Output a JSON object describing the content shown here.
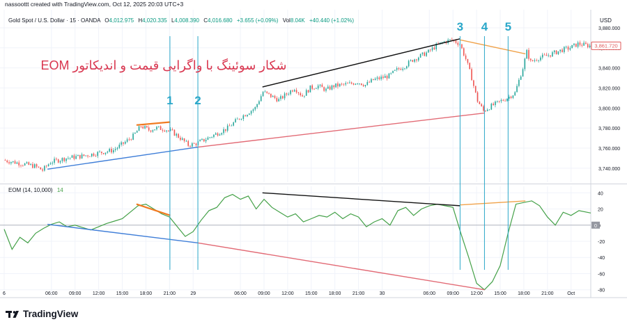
{
  "header": {
    "created_by": "nassoottt created with TradingView.com, Oct 12, 2025 20:03 UTC+3",
    "symbol_line": "Gold Spot / U.S. Dollar · 15 · OANDA",
    "ohlc": {
      "o_label": "O",
      "o_value": "4,012.975",
      "h_label": "H",
      "h_value": "4,020.335",
      "l_label": "L",
      "l_value": "4,008.390",
      "c_label": "C",
      "c_value": "4,016.680",
      "change": "+3.655 (+0.09%)",
      "vol_label": "Vol",
      "vol_value": "8.04K",
      "vol_change": "+40.440 (+1.02%)"
    }
  },
  "annotation_title": "شکار سوئینگ با واگرایی قیمت و اندیکاتور EOM",
  "indicator": {
    "label": "EOM (14, 10,000)",
    "value": "14"
  },
  "price_axis": {
    "currency": "USD",
    "last_price": "3,861.720"
  },
  "markers": [
    {
      "label": "1",
      "time": 21.05
    },
    {
      "label": "2",
      "time": 24.6
    },
    {
      "label": "3",
      "time": 57.9
    },
    {
      "label": "4",
      "time": 61.0
    },
    {
      "label": "5",
      "time": 64.0
    }
  ],
  "footer": {
    "brand": "TradingView"
  },
  "colors": {
    "up": "#26a69a",
    "down": "#ef5350",
    "eom": "#43a047",
    "marker": "#2aa7c9",
    "title": "#d9364f",
    "blue": "#3f7ed8",
    "red": "#e26a75",
    "black": "#111111",
    "orange": "#f0a24a",
    "dark_orange": "#f07a20",
    "last_price": "#e05a5a"
  },
  "chart_data": [
    {
      "type": "candlestick",
      "x_unit": "hours from 00:00 of the first day shown",
      "x_ticks": [
        {
          "label": "6",
          "t": 0
        },
        {
          "label": "06:00",
          "t": 6
        },
        {
          "label": "09:00",
          "t": 9
        },
        {
          "label": "12:00",
          "t": 12
        },
        {
          "label": "15:00",
          "t": 15
        },
        {
          "label": "18:00",
          "t": 18
        },
        {
          "label": "21:00",
          "t": 21
        },
        {
          "label": "29",
          "t": 24
        },
        {
          "label": "06:00",
          "t": 30
        },
        {
          "label": "09:00",
          "t": 33
        },
        {
          "label": "12:00",
          "t": 36
        },
        {
          "label": "15:00",
          "t": 39
        },
        {
          "label": "18:00",
          "t": 42
        },
        {
          "label": "21:00",
          "t": 45
        },
        {
          "label": "30",
          "t": 48
        },
        {
          "label": "06:00",
          "t": 54
        },
        {
          "label": "09:00",
          "t": 57
        },
        {
          "label": "12:00",
          "t": 60
        },
        {
          "label": "15:00",
          "t": 63
        },
        {
          "label": "18:00",
          "t": 66
        },
        {
          "label": "21:00",
          "t": 69
        },
        {
          "label": "Oct",
          "t": 72
        }
      ],
      "x_range": [
        0,
        74.5
      ],
      "y_range": [
        3726,
        3898
      ],
      "y_ticks": [
        3740,
        3760,
        3780,
        3800,
        3820,
        3840,
        3860,
        3880
      ],
      "y_tick_labels": [
        "3,740.000",
        "3,760.000",
        "3,780.000",
        "3,800.000",
        "3,820.000",
        "3,840.000",
        "3,860.000",
        "3,880.000"
      ],
      "price_path": [
        [
          0,
          3748
        ],
        [
          2,
          3745
        ],
        [
          4,
          3742
        ],
        [
          5,
          3738
        ],
        [
          6,
          3746
        ],
        [
          8,
          3750
        ],
        [
          10,
          3752
        ],
        [
          12,
          3755
        ],
        [
          14,
          3758
        ],
        [
          15.5,
          3766
        ],
        [
          16.5,
          3772
        ],
        [
          17.5,
          3782
        ],
        [
          18.5,
          3778
        ],
        [
          19.5,
          3780
        ],
        [
          20.5,
          3779
        ],
        [
          21.5,
          3776
        ],
        [
          22.5,
          3770
        ],
        [
          23.5,
          3763
        ],
        [
          24.3,
          3764
        ],
        [
          25.5,
          3768
        ],
        [
          27,
          3774
        ],
        [
          28.5,
          3780
        ],
        [
          30,
          3790
        ],
        [
          32,
          3800
        ],
        [
          33,
          3816
        ],
        [
          34,
          3812
        ],
        [
          35,
          3808
        ],
        [
          36,
          3814
        ],
        [
          37,
          3820
        ],
        [
          38,
          3812
        ],
        [
          39,
          3820
        ],
        [
          40,
          3822
        ],
        [
          41,
          3818
        ],
        [
          42,
          3822
        ],
        [
          44,
          3824
        ],
        [
          45,
          3826
        ],
        [
          46,
          3823
        ],
        [
          47,
          3828
        ],
        [
          48,
          3830
        ],
        [
          49,
          3832
        ],
        [
          50,
          3838
        ],
        [
          51,
          3842
        ],
        [
          52,
          3848
        ],
        [
          53,
          3852
        ],
        [
          54,
          3856
        ],
        [
          55,
          3862
        ],
        [
          56,
          3866
        ],
        [
          57,
          3868
        ],
        [
          58,
          3864
        ],
        [
          58.8,
          3848
        ],
        [
          59.5,
          3830
        ],
        [
          60.2,
          3808
        ],
        [
          61,
          3797
        ],
        [
          62,
          3802
        ],
        [
          63,
          3806
        ],
        [
          64,
          3810
        ],
        [
          65,
          3815
        ],
        [
          66,
          3840
        ],
        [
          66.5,
          3856
        ],
        [
          67,
          3846
        ],
        [
          68,
          3850
        ],
        [
          69,
          3852
        ],
        [
          70,
          3855
        ],
        [
          71,
          3858
        ],
        [
          72,
          3860
        ],
        [
          73,
          3864
        ],
        [
          74.5,
          3862
        ]
      ],
      "trendlines": [
        {
          "color": "blue",
          "from": [
            5.5,
            3739
          ],
          "to": [
            24.6,
            3761
          ]
        },
        {
          "color": "red",
          "from": [
            24.6,
            3761
          ],
          "to": [
            61.0,
            3795
          ]
        },
        {
          "color": "black",
          "from": [
            32.8,
            3821
          ],
          "to": [
            57.9,
            3869
          ]
        },
        {
          "color": "orange",
          "from": [
            57.9,
            3868
          ],
          "to": [
            66.2,
            3854
          ]
        },
        {
          "color": "dark_orange",
          "from": [
            16.8,
            3783
          ],
          "to": [
            21.1,
            3786
          ]
        }
      ]
    },
    {
      "type": "line",
      "name": "EOM (14, 10,000)",
      "y_range": [
        -88,
        48
      ],
      "y_ticks": [
        40,
        20,
        0,
        -20,
        -40,
        -60,
        -80
      ],
      "y_tick_labels": [
        "40",
        "20",
        "0",
        "-20",
        "-40",
        "-60",
        "-80"
      ],
      "x": [
        0,
        1,
        2,
        3,
        4,
        5,
        6,
        7,
        8,
        9,
        10,
        11,
        12,
        13,
        14,
        15,
        16,
        17,
        18,
        19,
        20,
        21,
        22,
        23,
        24,
        25,
        26,
        27,
        28,
        29,
        30,
        31,
        32,
        33,
        34,
        35,
        36,
        37,
        38,
        39,
        40,
        41,
        42,
        43,
        44,
        45,
        46,
        47,
        48,
        49,
        50,
        51,
        52,
        53,
        54,
        55,
        56,
        57,
        58,
        59,
        60,
        61,
        62,
        63,
        64,
        65,
        66,
        67,
        68,
        69,
        70,
        71,
        72,
        73,
        74.5
      ],
      "values": [
        -5,
        -30,
        -15,
        -22,
        -10,
        -4,
        1,
        4,
        -2,
        0,
        -3,
        -6,
        -2,
        2,
        5,
        8,
        16,
        24,
        26,
        20,
        14,
        10,
        -2,
        -14,
        -8,
        6,
        18,
        22,
        34,
        38,
        32,
        36,
        20,
        32,
        22,
        16,
        10,
        14,
        4,
        8,
        12,
        10,
        16,
        8,
        14,
        10,
        -2,
        4,
        8,
        0,
        18,
        22,
        12,
        20,
        24,
        26,
        24,
        22,
        -10,
        -40,
        -72,
        -80,
        -70,
        -50,
        -10,
        26,
        28,
        30,
        24,
        10,
        0,
        16,
        12,
        18,
        15
      ],
      "zero_line": 0,
      "trendlines": [
        {
          "color": "blue",
          "from": [
            5.5,
            1
          ],
          "to": [
            24.6,
            -22
          ]
        },
        {
          "color": "red",
          "from": [
            24.6,
            -22
          ],
          "to": [
            61.0,
            -80
          ]
        },
        {
          "color": "black",
          "from": [
            32.8,
            40
          ],
          "to": [
            57.9,
            24
          ]
        },
        {
          "color": "orange",
          "from": [
            57.9,
            25
          ],
          "to": [
            66.2,
            30
          ]
        },
        {
          "color": "dark_orange",
          "from": [
            16.8,
            26
          ],
          "to": [
            21.1,
            12
          ]
        }
      ]
    }
  ]
}
